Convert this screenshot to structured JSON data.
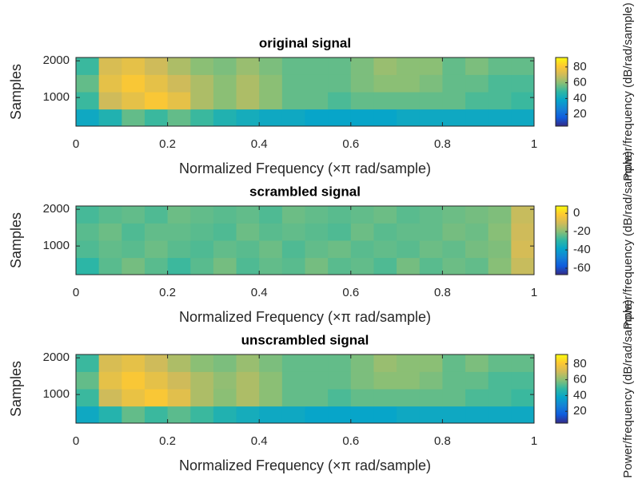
{
  "chart_data": [
    {
      "type": "heatmap",
      "title": "original signal",
      "x_label": "Normalized Frequency  (×π rad/sample)",
      "y_label": "Samples",
      "colorbar_label": "Power/frequency (dB/rad/sample)",
      "xlim": [
        0,
        1
      ],
      "xticks": [
        0,
        0.2,
        0.4,
        0.6,
        0.8,
        1
      ],
      "ylim": [
        220,
        2090
      ],
      "yticks": [
        1000,
        2000
      ],
      "clim": [
        5,
        92
      ],
      "cticks": [
        20,
        40,
        60,
        80
      ],
      "colormap": [
        "#352a87",
        "#0f5cdd",
        "#1481d6",
        "#06a4ca",
        "#2eb7a4",
        "#87bf77",
        "#d1bb59",
        "#fec832",
        "#f9fb0e"
      ],
      "x": [
        0.025,
        0.075,
        0.125,
        0.175,
        0.225,
        0.275,
        0.325,
        0.375,
        0.425,
        0.475,
        0.525,
        0.575,
        0.625,
        0.675,
        0.725,
        0.775,
        0.825,
        0.875,
        0.925,
        0.975
      ],
      "y": [
        450,
        920,
        1390,
        1860
      ],
      "values": [
        [
          40,
          45,
          55,
          50,
          55,
          50,
          45,
          42,
          40,
          40,
          38,
          38,
          38,
          38,
          40,
          40,
          40,
          40,
          40,
          40
        ],
        [
          50,
          70,
          75,
          80,
          75,
          65,
          60,
          65,
          60,
          55,
          55,
          52,
          55,
          55,
          55,
          55,
          55,
          52,
          52,
          50
        ],
        [
          55,
          75,
          80,
          75,
          70,
          65,
          60,
          65,
          60,
          55,
          55,
          55,
          58,
          60,
          60,
          58,
          55,
          55,
          52,
          52
        ],
        [
          50,
          72,
          75,
          70,
          65,
          60,
          58,
          62,
          58,
          55,
          55,
          55,
          58,
          62,
          60,
          60,
          55,
          58,
          55,
          55
        ]
      ]
    },
    {
      "type": "heatmap",
      "title": "scrambled signal",
      "x_label": "Normalized Frequency  (×π rad/sample)",
      "y_label": "Samples",
      "colorbar_label": "Power/frequency (dB/rad/sample)",
      "xlim": [
        0,
        1
      ],
      "xticks": [
        0,
        0.2,
        0.4,
        0.6,
        0.8,
        1
      ],
      "ylim": [
        220,
        2090
      ],
      "yticks": [
        1000,
        2000
      ],
      "clim": [
        -67,
        8
      ],
      "cticks": [
        -60,
        -40,
        -20,
        0
      ],
      "colormap": [
        "#352a87",
        "#0f5cdd",
        "#1481d6",
        "#06a4ca",
        "#2eb7a4",
        "#87bf77",
        "#d1bb59",
        "#fec832",
        "#f9fb0e"
      ],
      "x": [
        0.025,
        0.075,
        0.125,
        0.175,
        0.225,
        0.275,
        0.325,
        0.375,
        0.425,
        0.475,
        0.525,
        0.575,
        0.625,
        0.675,
        0.725,
        0.775,
        0.825,
        0.875,
        0.925,
        0.975
      ],
      "y": [
        450,
        920,
        1390,
        1860
      ],
      "values": [
        [
          -30,
          -25,
          -22,
          -25,
          -28,
          -25,
          -22,
          -26,
          -24,
          -25,
          -22,
          -25,
          -24,
          -26,
          -22,
          -25,
          -23,
          -24,
          -20,
          -12
        ],
        [
          -26,
          -24,
          -25,
          -23,
          -25,
          -26,
          -24,
          -25,
          -23,
          -26,
          -24,
          -23,
          -25,
          -24,
          -25,
          -23,
          -24,
          -22,
          -21,
          -10
        ],
        [
          -25,
          -23,
          -26,
          -24,
          -24,
          -25,
          -26,
          -23,
          -25,
          -24,
          -25,
          -26,
          -23,
          -25,
          -24,
          -24,
          -22,
          -23,
          -20,
          -11
        ],
        [
          -27,
          -25,
          -24,
          -26,
          -23,
          -24,
          -25,
          -24,
          -26,
          -23,
          -24,
          -25,
          -24,
          -23,
          -25,
          -24,
          -23,
          -22,
          -21,
          -12
        ]
      ]
    },
    {
      "type": "heatmap",
      "title": "unscrambled signal",
      "x_label": "Normalized Frequency  (×π rad/sample)",
      "y_label": "Samples",
      "colorbar_label": "Power/frequency (dB/rad/sample)",
      "xlim": [
        0,
        1
      ],
      "xticks": [
        0,
        0.2,
        0.4,
        0.6,
        0.8,
        1
      ],
      "ylim": [
        220,
        2090
      ],
      "yticks": [
        1000,
        2000
      ],
      "clim": [
        5,
        92
      ],
      "cticks": [
        20,
        40,
        60,
        80
      ],
      "colormap": [
        "#352a87",
        "#0f5cdd",
        "#1481d6",
        "#06a4ca",
        "#2eb7a4",
        "#87bf77",
        "#d1bb59",
        "#fec832",
        "#f9fb0e"
      ],
      "x": [
        0.025,
        0.075,
        0.125,
        0.175,
        0.225,
        0.275,
        0.325,
        0.375,
        0.425,
        0.475,
        0.525,
        0.575,
        0.625,
        0.675,
        0.725,
        0.775,
        0.825,
        0.875,
        0.925,
        0.975
      ],
      "y": [
        450,
        920,
        1390,
        1860
      ],
      "values": [
        [
          40,
          46,
          55,
          50,
          54,
          50,
          45,
          42,
          40,
          40,
          38,
          38,
          38,
          38,
          40,
          40,
          40,
          40,
          40,
          40
        ],
        [
          50,
          70,
          76,
          80,
          74,
          65,
          60,
          65,
          60,
          55,
          55,
          52,
          55,
          55,
          55,
          55,
          55,
          52,
          52,
          50
        ],
        [
          55,
          75,
          80,
          75,
          70,
          65,
          61,
          65,
          60,
          55,
          55,
          55,
          58,
          60,
          60,
          58,
          55,
          55,
          52,
          52
        ],
        [
          50,
          72,
          75,
          70,
          65,
          60,
          58,
          62,
          58,
          55,
          55,
          55,
          58,
          62,
          60,
          60,
          55,
          58,
          55,
          55
        ]
      ]
    }
  ]
}
